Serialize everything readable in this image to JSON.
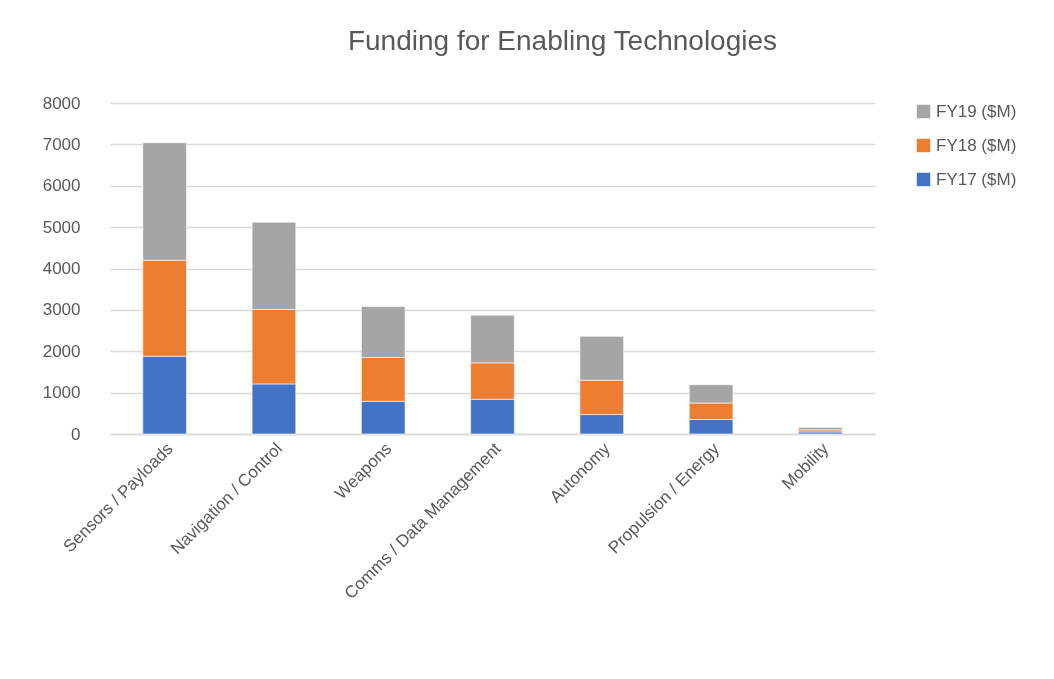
{
  "chart_data": {
    "type": "bar",
    "title": "Funding for Enabling Technologies",
    "categories": [
      "Sensors / Payloads",
      "Navigation / Control",
      "Weapons",
      "Comms / Data Management",
      "Autonomy",
      "Propulsion / Energy",
      "Mobility"
    ],
    "series": [
      {
        "name": "FY17 ($M)",
        "color": "#4472c4",
        "values": [
          1880,
          1210,
          790,
          840,
          470,
          350,
          50
        ]
      },
      {
        "name": "FY18 ($M)",
        "color": "#ed7d31",
        "values": [
          2320,
          1800,
          1060,
          880,
          830,
          400,
          50
        ]
      },
      {
        "name": "FY19  ($M)",
        "color": "#a5a5a5",
        "values": [
          2840,
          2110,
          1230,
          1150,
          1060,
          440,
          60
        ]
      }
    ],
    "stacked": true,
    "ylim": [
      0,
      8000
    ],
    "yticks": [
      0,
      1000,
      2000,
      3000,
      4000,
      5000,
      6000,
      7000,
      8000
    ],
    "grid": "y",
    "legend": "right"
  }
}
